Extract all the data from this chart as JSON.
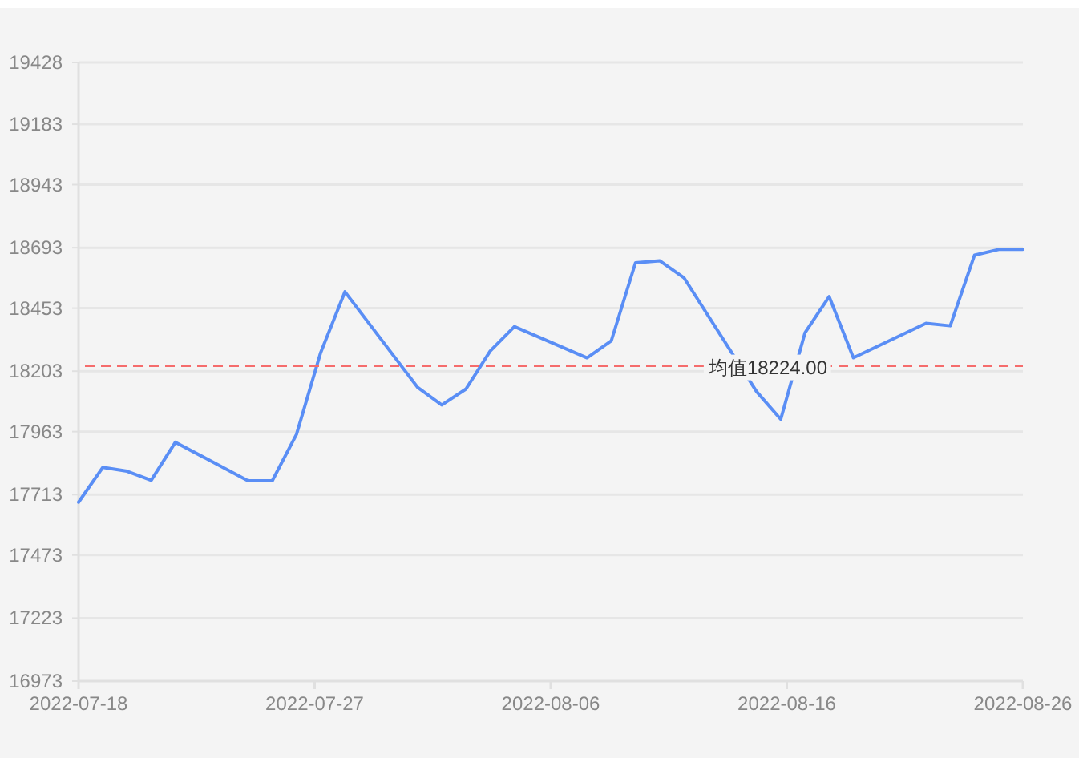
{
  "chart_data": {
    "type": "line",
    "x": [
      "2022-07-18",
      "2022-07-19",
      "2022-07-20",
      "2022-07-21",
      "2022-07-22",
      "2022-07-25",
      "2022-07-26",
      "2022-07-27",
      "2022-07-28",
      "2022-07-29",
      "2022-08-01",
      "2022-08-02",
      "2022-08-03",
      "2022-08-04",
      "2022-08-05",
      "2022-08-08",
      "2022-08-09",
      "2022-08-10",
      "2022-08-11",
      "2022-08-12",
      "2022-08-15",
      "2022-08-16",
      "2022-08-17",
      "2022-08-18",
      "2022-08-19",
      "2022-08-22",
      "2022-08-23",
      "2022-08-24",
      "2022-08-25",
      "2022-08-26"
    ],
    "series": [
      {
        "color": "#5a8ef5",
        "values": [
          17683,
          17821,
          17806,
          17770,
          17921,
          17768,
          17768,
          17952,
          18277,
          18518,
          18139,
          18069,
          18132,
          18283,
          18380,
          18256,
          18323,
          18633,
          18641,
          18574,
          18122,
          18012,
          18355,
          18499,
          18256,
          18393,
          18383,
          18663,
          18686,
          18686
        ]
      }
    ],
    "xlim": [
      "2022-07-18",
      "2022-08-26"
    ],
    "xticks": [
      {
        "value": "2022-07-18",
        "label": "2022-07-18"
      },
      {
        "value": "2022-07-27T18:00",
        "label": "2022-07-27"
      },
      {
        "value": "2022-08-06T12:00",
        "label": "2022-08-06"
      },
      {
        "value": "2022-08-16T06:00",
        "label": "2022-08-16"
      },
      {
        "value": "2022-08-26",
        "label": "2022-08-26"
      }
    ],
    "ylim": [
      16973,
      19428
    ],
    "yticks": [
      16973,
      17223,
      17473,
      17713,
      17963,
      18203,
      18453,
      18693,
      18943,
      19183,
      19428
    ],
    "grid": "y",
    "marker": "none",
    "line_style": "solid",
    "ref_lines": [
      {
        "axis": "y",
        "value": 18224,
        "label": "均值18224.00",
        "color": "#f56c6c",
        "line_style": "dashed"
      }
    ]
  }
}
